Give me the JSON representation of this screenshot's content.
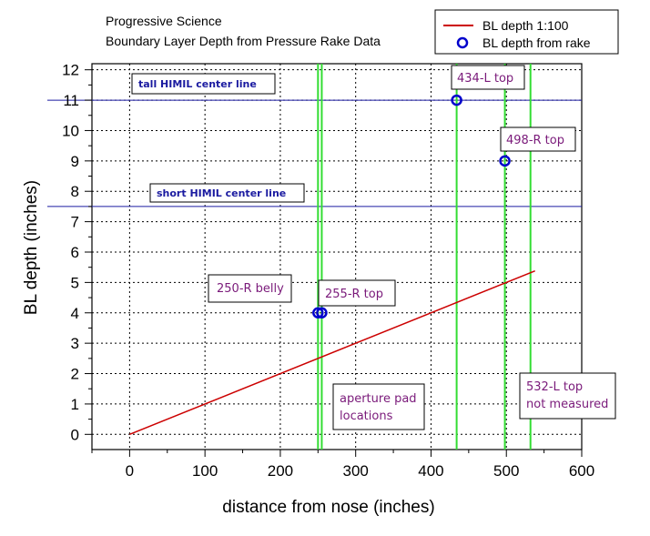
{
  "chart_data": {
    "type": "line",
    "title_lines": [
      "Progressive Science",
      "Boundary Layer Depth from Pressure Rake Data"
    ],
    "xlabel": "distance from nose (inches)",
    "ylabel": "BL depth (inches)",
    "xlim": [
      -50,
      600
    ],
    "ylim": [
      -0.5,
      12.2
    ],
    "x_ticks": [
      0,
      100,
      200,
      300,
      400,
      500,
      600
    ],
    "y_ticks": [
      0,
      1,
      2,
      3,
      4,
      5,
      6,
      7,
      8,
      9,
      10,
      11,
      12
    ],
    "grid": true,
    "legend_position": "top-right",
    "series": [
      {
        "name": "BL depth 1:100",
        "kind": "line",
        "color": "#cc0000",
        "x": [
          0,
          538
        ],
        "y": [
          0,
          5.38
        ]
      },
      {
        "name": "BL depth from rake",
        "kind": "scatter",
        "color": "#0000cc",
        "x": [
          250,
          255,
          434,
          498
        ],
        "y": [
          4,
          4,
          11,
          9
        ]
      }
    ],
    "horizontal_lines": [
      {
        "y": 11,
        "label": "tall HIMIL center line",
        "color": "#1a1aa0"
      },
      {
        "y": 7.5,
        "label": "short HIMIL center line",
        "color": "#1a1aa0"
      }
    ],
    "vertical_lines": {
      "color": "#33dd33",
      "x": [
        250,
        255,
        434,
        498,
        532
      ]
    },
    "annotations": [
      {
        "id": "250r",
        "lines": [
          "250-R belly"
        ]
      },
      {
        "id": "255r",
        "lines": [
          "255-R top"
        ]
      },
      {
        "id": "434l",
        "lines": [
          "434-L top"
        ]
      },
      {
        "id": "498r",
        "lines": [
          "498-R top"
        ]
      },
      {
        "id": "aperture",
        "lines": [
          "aperture pad",
          "locations"
        ]
      },
      {
        "id": "532l",
        "lines": [
          "532-L top",
          "not measured"
        ]
      }
    ]
  }
}
